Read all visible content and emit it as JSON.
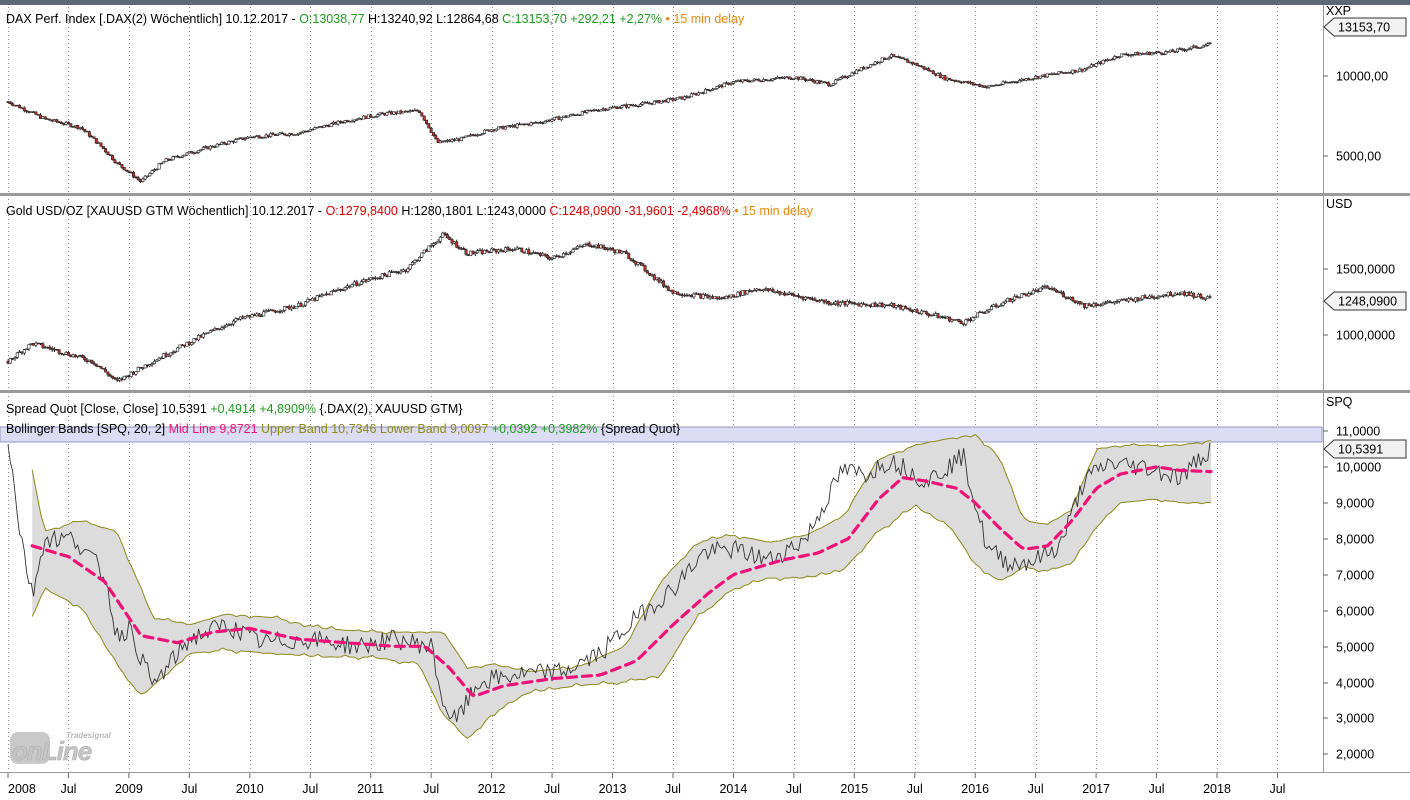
{
  "colors": {
    "green": "#1f9a1f",
    "red": "#d40000",
    "orange": "#e8870c",
    "olive": "#8a8a1a",
    "magenta": "#ee1177",
    "band_fill": "#dcdcdc",
    "highlight": "#dcdcf4"
  },
  "panes": [
    {
      "id": "dax",
      "unit": "XXP",
      "axis_ticks": [
        "10000,00",
        "5000,00"
      ],
      "last_value": "13153,70",
      "legend": [
        {
          "text": "DAX Perf. Index [.DAX(2) Wöchentlich] 10.12.2017 - ",
          "color": "#000000"
        },
        {
          "text": "O:13038,77 ",
          "color": "#1f9a1f"
        },
        {
          "text": "H:13240,92 L:12864,68 ",
          "color": "#000000"
        },
        {
          "text": "C:13153,70 +292,21 +2,27% ",
          "color": "#1f9a1f"
        },
        {
          "text": "• 15 min delay",
          "color": "#e8870c"
        }
      ]
    },
    {
      "id": "gold",
      "unit": "USD",
      "axis_ticks": [
        "1500,0000",
        "1000,0000"
      ],
      "last_value": "1248,0900",
      "legend": [
        {
          "text": "Gold USD/OZ [XAUUSD GTM Wöchentlich] 10.12.2017 - ",
          "color": "#000000"
        },
        {
          "text": "O:1279,8400 ",
          "color": "#d40000"
        },
        {
          "text": "H:1280,1801 L:1243,0000 ",
          "color": "#000000"
        },
        {
          "text": "C:1248,0900 -31,9601 -2,4968% ",
          "color": "#d40000"
        },
        {
          "text": "• 15 min delay",
          "color": "#e8870c"
        }
      ]
    },
    {
      "id": "spread",
      "unit": "SPQ",
      "axis_ticks": [
        "11,0000",
        "10,0000",
        "9,0000",
        "8,0000",
        "7,0000",
        "6,0000",
        "5,0000",
        "4,0000",
        "3,0000",
        "2,0000"
      ],
      "last_value": "10,5391",
      "legend": [
        {
          "text": "Spread Quot [Close, Close] ",
          "color": "#000000"
        },
        {
          "text": "10,5391 ",
          "color": "#000000"
        },
        {
          "text": "+0,4914 +4,8909% ",
          "color": "#1f9a1f"
        },
        {
          "text": "{.DAX(2), XAUUSD GTM}",
          "color": "#000000"
        }
      ],
      "legend2": [
        {
          "text": "Bollinger Bands [SPQ, 20, 2] ",
          "color": "#000000"
        },
        {
          "text": "Mid Line 9,8721 ",
          "color": "#ee1177"
        },
        {
          "text": "Upper Band 10,7346 ",
          "color": "#8a8a1a"
        },
        {
          "text": "Lower Band 9,0097 ",
          "color": "#8a8a1a"
        },
        {
          "text": "+0,0392 +0,3982% ",
          "color": "#1f9a1f"
        },
        {
          "text": "{Spread Quot}",
          "color": "#000000"
        }
      ]
    }
  ],
  "x_axis": {
    "labels": [
      "2008",
      "Jul",
      "2009",
      "Jul",
      "2010",
      "Jul",
      "2011",
      "Jul",
      "2012",
      "Jul",
      "2013",
      "Jul",
      "2014",
      "Jul",
      "2015",
      "Jul",
      "2016",
      "Jul",
      "2017",
      "Jul",
      "2018",
      "Jul"
    ]
  },
  "logo": {
    "small": "Tradesignal",
    "big": "onLine"
  },
  "chart_data": [
    {
      "type": "candlestick",
      "name": "DAX Perf. Index",
      "y_scale": "log",
      "x": [
        2008.0,
        2008.3,
        2008.6,
        2008.9,
        2009.1,
        2009.3,
        2009.6,
        2010.0,
        2010.4,
        2010.8,
        2011.1,
        2011.4,
        2011.55,
        2011.75,
        2012.0,
        2012.4,
        2012.9,
        2013.3,
        2013.6,
        2014.0,
        2014.5,
        2014.8,
        2015.3,
        2015.5,
        2015.75,
        2016.1,
        2016.5,
        2016.9,
        2017.2,
        2017.6,
        2017.95
      ],
      "y": [
        8000,
        6900,
        6400,
        4700,
        4000,
        4800,
        5300,
        5900,
        6100,
        6800,
        7200,
        7400,
        5600,
        5800,
        6300,
        6700,
        7500,
        7900,
        8300,
        9500,
        9900,
        9300,
        11900,
        11100,
        9800,
        9100,
        9900,
        10600,
        12000,
        12300,
        13153.7
      ]
    },
    {
      "type": "candlestick",
      "name": "Gold USD/OZ",
      "y_scale": "log",
      "x": [
        2008.0,
        2008.2,
        2008.7,
        2008.9,
        2009.4,
        2009.9,
        2010.4,
        2010.9,
        2011.3,
        2011.6,
        2011.8,
        2012.2,
        2012.5,
        2012.8,
        2013.1,
        2013.35,
        2013.5,
        2013.9,
        2014.2,
        2014.8,
        2015.3,
        2015.9,
        2016.3,
        2016.6,
        2016.9,
        2017.2,
        2017.7,
        2017.95
      ],
      "y": [
        850,
        950,
        850,
        750,
        920,
        1100,
        1200,
        1380,
        1500,
        1850,
        1650,
        1700,
        1600,
        1750,
        1650,
        1420,
        1300,
        1250,
        1330,
        1220,
        1200,
        1080,
        1250,
        1340,
        1200,
        1230,
        1300,
        1248.09
      ]
    },
    {
      "type": "line",
      "name": "Spread Quot",
      "x": [
        2008.0,
        2008.1,
        2008.2,
        2008.3,
        2008.55,
        2008.8,
        2008.9,
        2009.0,
        2009.2,
        2009.5,
        2009.8,
        2010.1,
        2010.5,
        2010.9,
        2011.2,
        2011.5,
        2011.6,
        2011.7,
        2011.9,
        2012.2,
        2012.6,
        2012.9,
        2013.2,
        2013.5,
        2013.75,
        2014.0,
        2014.3,
        2014.6,
        2014.9,
        2015.1,
        2015.3,
        2015.6,
        2015.9,
        2016.1,
        2016.3,
        2016.5,
        2016.7,
        2016.9,
        2017.1,
        2017.4,
        2017.7,
        2017.95
      ],
      "y": [
        10.8,
        8.2,
        6.4,
        8.0,
        8.0,
        7.0,
        5.3,
        5.5,
        3.9,
        5.2,
        5.6,
        5.1,
        5.2,
        5.0,
        5.2,
        5.0,
        3.4,
        2.9,
        4.0,
        4.2,
        4.3,
        4.8,
        5.8,
        6.6,
        7.6,
        7.7,
        7.4,
        8.0,
        9.9,
        9.8,
        10.2,
        9.6,
        10.3,
        7.7,
        7.3,
        7.4,
        7.8,
        9.6,
        10.1,
        10.0,
        9.7,
        10.5391
      ]
    },
    {
      "type": "line",
      "name": "Mid Line",
      "x": [
        2008.2,
        2008.5,
        2008.8,
        2009.1,
        2009.4,
        2009.7,
        2010.0,
        2010.4,
        2010.8,
        2011.2,
        2011.45,
        2011.65,
        2011.85,
        2012.1,
        2012.5,
        2012.9,
        2013.2,
        2013.5,
        2013.8,
        2014.0,
        2014.4,
        2014.7,
        2014.95,
        2015.2,
        2015.4,
        2015.6,
        2015.85,
        2016.0,
        2016.2,
        2016.4,
        2016.6,
        2016.8,
        2017.0,
        2017.2,
        2017.5,
        2017.7,
        2017.95
      ],
      "y": [
        7.8,
        7.5,
        6.8,
        5.3,
        5.1,
        5.4,
        5.5,
        5.2,
        5.1,
        5.0,
        5.0,
        4.4,
        3.6,
        3.9,
        4.1,
        4.2,
        4.6,
        5.6,
        6.5,
        7.0,
        7.4,
        7.6,
        8.0,
        9.1,
        9.7,
        9.6,
        9.4,
        9.0,
        8.3,
        7.7,
        7.8,
        8.5,
        9.4,
        9.8,
        10.0,
        9.9,
        9.87
      ]
    },
    {
      "type": "area",
      "name": "Upper Band",
      "x": [
        2008.2,
        2008.3,
        2008.6,
        2008.9,
        2009.2,
        2009.5,
        2009.8,
        2010.2,
        2010.6,
        2011.0,
        2011.4,
        2011.6,
        2011.8,
        2012.0,
        2012.3,
        2012.7,
        2013.1,
        2013.4,
        2013.7,
        2014.0,
        2014.3,
        2014.6,
        2014.9,
        2015.2,
        2015.5,
        2015.8,
        2016.0,
        2016.2,
        2016.4,
        2016.6,
        2016.8,
        2017.0,
        2017.2,
        2017.5,
        2017.7,
        2017.95
      ],
      "y": [
        9.9,
        8.2,
        8.5,
        8.2,
        5.8,
        5.6,
        5.9,
        5.8,
        5.5,
        5.4,
        5.4,
        5.4,
        4.4,
        4.5,
        4.3,
        4.4,
        5.0,
        6.8,
        7.9,
        8.1,
        7.9,
        8.1,
        8.6,
        10.2,
        10.6,
        10.8,
        10.9,
        10.3,
        8.5,
        8.4,
        8.8,
        10.5,
        10.6,
        10.6,
        10.6,
        10.7346
      ]
    },
    {
      "type": "area",
      "name": "Lower Band",
      "x": [
        2008.2,
        2008.3,
        2008.6,
        2008.9,
        2009.1,
        2009.5,
        2009.8,
        2010.2,
        2010.6,
        2011.0,
        2011.4,
        2011.6,
        2011.8,
        2012.0,
        2012.3,
        2012.7,
        2013.1,
        2013.4,
        2013.7,
        2014.0,
        2014.3,
        2014.6,
        2014.9,
        2015.2,
        2015.5,
        2015.8,
        2016.0,
        2016.2,
        2016.4,
        2016.6,
        2016.8,
        2017.0,
        2017.2,
        2017.5,
        2017.7,
        2017.95
      ],
      "y": [
        5.8,
        6.6,
        6.1,
        4.5,
        3.6,
        4.8,
        4.9,
        4.8,
        4.7,
        4.7,
        4.5,
        3.1,
        2.4,
        3.1,
        3.7,
        3.9,
        4.0,
        4.2,
        5.8,
        6.6,
        6.9,
        6.9,
        7.1,
        8.2,
        8.9,
        8.3,
        7.3,
        6.8,
        7.2,
        7.1,
        7.3,
        8.3,
        9.0,
        9.1,
        9.0,
        9.0097
      ]
    }
  ]
}
